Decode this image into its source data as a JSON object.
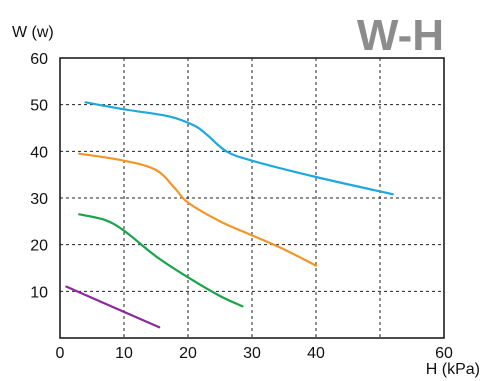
{
  "chart_data": {
    "type": "line",
    "title": "W-H",
    "xlabel": "H (kPa)",
    "ylabel": "W (w)",
    "xlim": [
      0,
      60
    ],
    "ylim": [
      0,
      60
    ],
    "x_ticks": [
      0,
      10,
      20,
      30,
      40,
      60
    ],
    "y_ticks": [
      10,
      20,
      30,
      40,
      50,
      60
    ],
    "grid": true,
    "series": [
      {
        "color": "#1ea8e0",
        "points": [
          [
            4,
            50.5
          ],
          [
            10,
            49
          ],
          [
            17,
            47.5
          ],
          [
            21,
            45.5
          ],
          [
            23,
            43.5
          ],
          [
            26,
            40
          ],
          [
            30,
            38
          ],
          [
            40,
            34.5
          ],
          [
            52,
            30.8
          ]
        ]
      },
      {
        "color": "#f2962a",
        "points": [
          [
            3,
            39.5
          ],
          [
            10,
            38
          ],
          [
            15,
            36
          ],
          [
            18,
            32
          ],
          [
            20,
            29
          ],
          [
            25,
            25
          ],
          [
            30,
            22
          ],
          [
            35,
            19
          ],
          [
            40,
            15.5
          ]
        ]
      },
      {
        "color": "#19a34a",
        "points": [
          [
            3,
            26.5
          ],
          [
            7,
            25.3
          ],
          [
            10,
            23
          ],
          [
            15,
            17.5
          ],
          [
            20,
            13
          ],
          [
            25,
            9
          ],
          [
            28.5,
            6.8
          ]
        ]
      },
      {
        "color": "#8b2a9a",
        "points": [
          [
            1,
            11
          ],
          [
            15.5,
            2.3
          ]
        ]
      }
    ]
  }
}
